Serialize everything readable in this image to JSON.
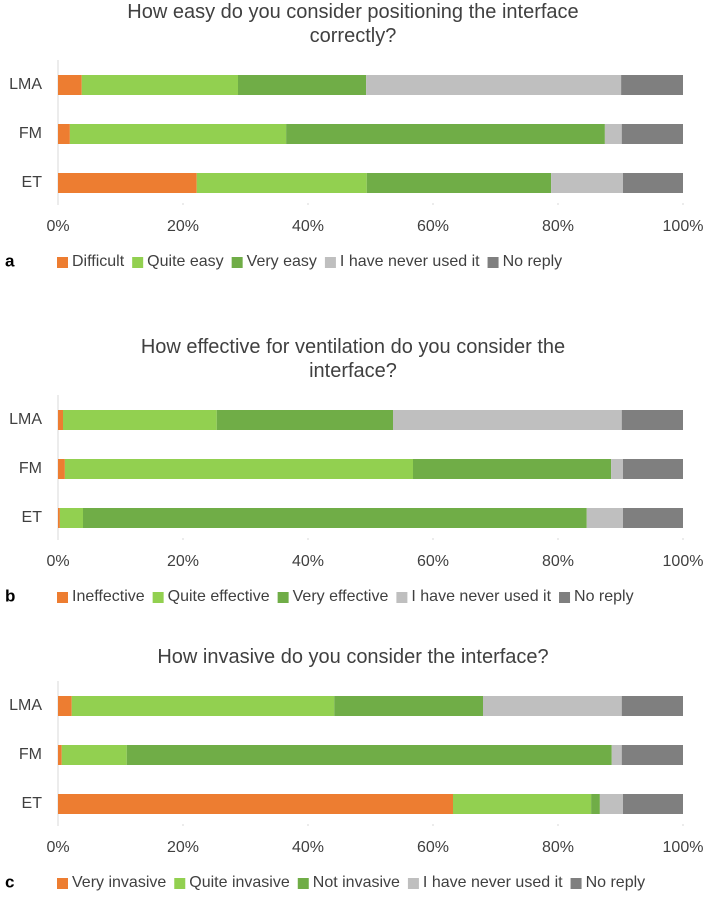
{
  "chart_data": [
    {
      "type": "stacked_bar_horizontal",
      "panel_label": "a",
      "title": "How easy do you consider positioning the interface correctly?",
      "categories": [
        "LMA",
        "FM",
        "ET"
      ],
      "series": [
        {
          "name": "Difficult",
          "color": "#ed7d31",
          "values": [
            3.8,
            1.9,
            22.2
          ]
        },
        {
          "name": "Quite easy",
          "color": "#92d050",
          "values": [
            25.0,
            34.6,
            27.2
          ]
        },
        {
          "name": "Very easy",
          "color": "#70ad47",
          "values": [
            20.5,
            51.0,
            29.5
          ]
        },
        {
          "name": "I have never used it",
          "color": "#bfbfbf",
          "values": [
            40.8,
            2.7,
            11.5
          ]
        },
        {
          "name": "No reply",
          "color": "#7f7f7f",
          "values": [
            9.9,
            9.8,
            9.6
          ]
        }
      ],
      "xlim": [
        0,
        100
      ],
      "xticks": [
        {
          "value": 0,
          "label": "0%"
        },
        {
          "value": 20,
          "label": "20%"
        },
        {
          "value": 40,
          "label": "40%"
        },
        {
          "value": 60,
          "label": "60%"
        },
        {
          "value": 80,
          "label": "80%"
        },
        {
          "value": 100,
          "label": "100%"
        }
      ],
      "grid": false
    },
    {
      "type": "stacked_bar_horizontal",
      "panel_label": "b",
      "title": "How effective for ventilation do you consider the interface?",
      "categories": [
        "LMA",
        "FM",
        "ET"
      ],
      "series": [
        {
          "name": "Ineffective",
          "color": "#ed7d31",
          "values": [
            0.8,
            1.1,
            0.3
          ]
        },
        {
          "name": "Quite effective",
          "color": "#92d050",
          "values": [
            24.6,
            55.7,
            3.7
          ]
        },
        {
          "name": "Very effective",
          "color": "#70ad47",
          "values": [
            28.2,
            31.7,
            80.6
          ]
        },
        {
          "name": "I have never used it",
          "color": "#bfbfbf",
          "values": [
            36.6,
            1.9,
            5.8
          ]
        },
        {
          "name": "No reply",
          "color": "#7f7f7f",
          "values": [
            9.8,
            9.6,
            9.6
          ]
        }
      ],
      "xlim": [
        0,
        100
      ],
      "xticks": [
        {
          "value": 0,
          "label": "0%"
        },
        {
          "value": 20,
          "label": "20%"
        },
        {
          "value": 40,
          "label": "40%"
        },
        {
          "value": 60,
          "label": "60%"
        },
        {
          "value": 80,
          "label": "80%"
        },
        {
          "value": 100,
          "label": "100%"
        }
      ],
      "grid": false
    },
    {
      "type": "stacked_bar_horizontal",
      "panel_label": "c",
      "title": "How invasive do you consider the interface?",
      "categories": [
        "LMA",
        "FM",
        "ET"
      ],
      "series": [
        {
          "name": "Very invasive",
          "color": "#ed7d31",
          "values": [
            2.2,
            0.6,
            63.2
          ]
        },
        {
          "name": "Quite invasive",
          "color": "#92d050",
          "values": [
            42.0,
            10.4,
            22.1
          ]
        },
        {
          "name": "Not invasive",
          "color": "#70ad47",
          "values": [
            23.8,
            77.6,
            1.4
          ]
        },
        {
          "name": "I have never used it",
          "color": "#bfbfbf",
          "values": [
            22.2,
            1.6,
            3.7
          ]
        },
        {
          "name": "No reply",
          "color": "#7f7f7f",
          "values": [
            9.8,
            9.8,
            9.6
          ]
        }
      ],
      "xlim": [
        0,
        100
      ],
      "xticks": [
        {
          "value": 0,
          "label": "0%"
        },
        {
          "value": 20,
          "label": "20%"
        },
        {
          "value": 40,
          "label": "40%"
        },
        {
          "value": 60,
          "label": "60%"
        },
        {
          "value": 80,
          "label": "80%"
        },
        {
          "value": 100,
          "label": "100%"
        }
      ],
      "grid": false
    }
  ]
}
